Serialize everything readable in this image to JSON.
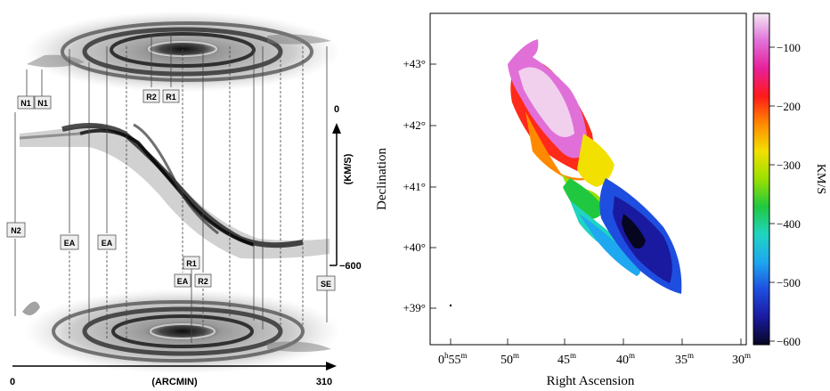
{
  "left_panel": {
    "labels": {
      "N1a": "N1",
      "N1b": "N1",
      "R2_top": "R2",
      "R1_top": "R1",
      "N2": "N2",
      "EA_1": "EA",
      "EA_2": "EA",
      "R1_mid": "R1",
      "EA_3": "EA",
      "R2_mid": "R2",
      "SE": "SE"
    },
    "velocity_axis": {
      "label": "(KM/S)",
      "top_value": "0",
      "bottom_value": "−600"
    },
    "position_axis": {
      "label": "(ARCMIN)",
      "start_value": "0",
      "end_value": "310"
    }
  },
  "right_panel": {
    "x_title": "Right Ascension",
    "y_title": "Declination",
    "x_ticks": [
      {
        "main": "0",
        "h": "h",
        "val": "55",
        "m": "m"
      },
      {
        "main": "",
        "h": "",
        "val": "50",
        "m": "m"
      },
      {
        "main": "",
        "h": "",
        "val": "45",
        "m": "m"
      },
      {
        "main": "",
        "h": "",
        "val": "40",
        "m": "m"
      },
      {
        "main": "",
        "h": "",
        "val": "35",
        "m": "m"
      },
      {
        "main": "",
        "h": "",
        "val": "30",
        "m": "m"
      }
    ],
    "y_ticks": [
      "+43°",
      "+42°",
      "+41°",
      "+40°",
      "+39°"
    ],
    "colorbar": {
      "title": "KM/S",
      "ticks": [
        "−100",
        "−200",
        "−300",
        "−400",
        "−500",
        "−600"
      ],
      "stops": [
        "#f4e8f4",
        "#e070d8",
        "#e8209a",
        "#ff1a1a",
        "#ff8a00",
        "#f2e000",
        "#9ae000",
        "#20c840",
        "#20d4c0",
        "#1ea8f0",
        "#1e4ee0",
        "#1a1aa0",
        "#060620"
      ]
    }
  }
}
